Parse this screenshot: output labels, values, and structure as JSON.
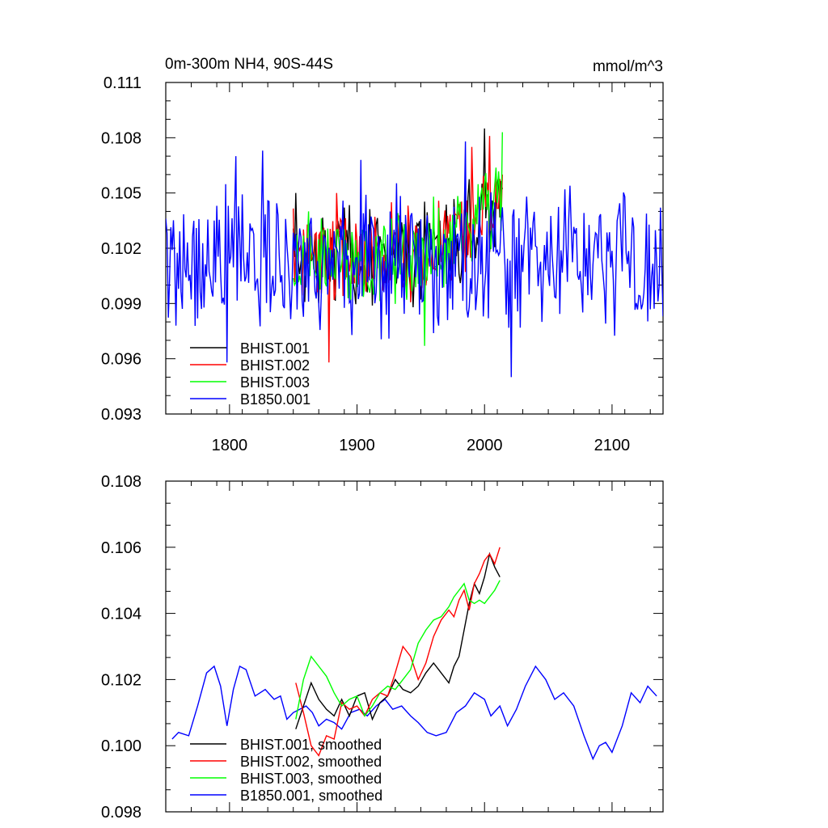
{
  "chart_data": [
    {
      "type": "line",
      "title": "0m-300m NH4, 90S-44S",
      "units": "mmol/m^3",
      "xlim": [
        1750,
        2140
      ],
      "ylim": [
        0.093,
        0.111
      ],
      "xticks": [
        1800,
        1900,
        2000,
        2100
      ],
      "yticks": [
        0.093,
        0.096,
        0.099,
        0.102,
        0.105,
        0.108,
        0.111
      ],
      "ytick_labels": [
        "0.093",
        "0.096",
        "0.099",
        "0.102",
        "0.105",
        "0.108",
        "0.111"
      ],
      "legend_position": "lower-left",
      "series": [
        {
          "name": "B1850.001",
          "color": "#0000ff",
          "x_start": 1750,
          "x_end": 2140,
          "mean": 0.1012,
          "amplitude": 0.0045,
          "keypoints": [
            [
              1758,
              0.0978
            ],
            [
              1788,
              0.1035
            ],
            [
              1798,
              0.0958
            ],
            [
              1805,
              0.107
            ],
            [
              1826,
              0.1073
            ],
            [
              1903,
              0.1068
            ],
            [
              1985,
              0.1078
            ],
            [
              2021,
              0.095
            ],
            [
              2033,
              0.1048
            ],
            [
              2063,
              0.1052
            ],
            [
              2110,
              0.1048
            ],
            [
              2139,
              0.101
            ]
          ]
        },
        {
          "name": "BHIST.001",
          "color": "#000000",
          "x_start": 1850,
          "x_end": 2014,
          "mean": 0.1015,
          "amplitude": 0.003,
          "keypoints": [
            [
              1852,
              0.105
            ],
            [
              1870,
              0.099
            ],
            [
              1930,
              0.1
            ],
            [
              1965,
              0.1035
            ],
            [
              2000,
              0.1085
            ],
            [
              2014,
              0.1052
            ]
          ]
        },
        {
          "name": "BHIST.002",
          "color": "#ff0000",
          "x_start": 1850,
          "x_end": 2014,
          "mean": 0.1015,
          "amplitude": 0.003,
          "keypoints": [
            [
              1853,
              0.1025
            ],
            [
              1878,
              0.0958
            ],
            [
              1884,
              0.105
            ],
            [
              1927,
              0.1045
            ],
            [
              1990,
              0.1075
            ],
            [
              2004,
              0.1081
            ],
            [
              2014,
              0.106
            ]
          ]
        },
        {
          "name": "BHIST.003",
          "color": "#00ff00",
          "x_start": 1850,
          "x_end": 2014,
          "mean": 0.1015,
          "amplitude": 0.003,
          "keypoints": [
            [
              1862,
              0.104
            ],
            [
              1953,
              0.0967
            ],
            [
              1960,
              0.1048
            ],
            [
              2000,
              0.1055
            ],
            [
              2014,
              0.1083
            ]
          ]
        }
      ]
    },
    {
      "type": "line",
      "xlim": [
        1750,
        2140
      ],
      "ylim": [
        0.098,
        0.108
      ],
      "xticks": [
        1800,
        1900,
        2000,
        2100
      ],
      "yticks": [
        0.098,
        0.1,
        0.102,
        0.104,
        0.106,
        0.108
      ],
      "ytick_labels": [
        "0.098",
        "0.100",
        "0.102",
        "0.104",
        "0.106",
        "0.108"
      ],
      "legend_position": "lower-left",
      "series": [
        {
          "name": "B1850.001, smoothed",
          "color": "#0000ff",
          "x": [
            1755,
            1760,
            1768,
            1775,
            1782,
            1788,
            1793,
            1798,
            1803,
            1808,
            1813,
            1820,
            1828,
            1835,
            1840,
            1845,
            1850,
            1855,
            1860,
            1865,
            1870,
            1876,
            1882,
            1888,
            1895,
            1902,
            1908,
            1915,
            1922,
            1928,
            1935,
            1942,
            1948,
            1955,
            1962,
            1970,
            1978,
            1985,
            1992,
            2000,
            2005,
            2012,
            2018,
            2025,
            2032,
            2040,
            2048,
            2055,
            2062,
            2070,
            2078,
            2085,
            2090,
            2095,
            2100,
            2108,
            2115,
            2122,
            2128,
            2135
          ],
          "y": [
            0.1002,
            0.1004,
            0.1003,
            0.1012,
            0.1022,
            0.1024,
            0.1018,
            0.1006,
            0.1017,
            0.1024,
            0.1023,
            0.1015,
            0.1017,
            0.1014,
            0.1015,
            0.1008,
            0.101,
            0.1011,
            0.1012,
            0.101,
            0.1006,
            0.1008,
            0.1007,
            0.1005,
            0.101,
            0.1011,
            0.1009,
            0.1012,
            0.1014,
            0.1011,
            0.1012,
            0.1009,
            0.1007,
            0.1004,
            0.1003,
            0.1004,
            0.101,
            0.1012,
            0.1016,
            0.1014,
            0.1009,
            0.1012,
            0.1006,
            0.1011,
            0.1018,
            0.1024,
            0.102,
            0.1014,
            0.1016,
            0.1012,
            0.1003,
            0.0996,
            0.1,
            0.1001,
            0.0998,
            0.1006,
            0.1016,
            0.1013,
            0.1018,
            0.1015
          ]
        },
        {
          "name": "BHIST.001, smoothed",
          "color": "#000000",
          "x": [
            1852,
            1858,
            1864,
            1870,
            1876,
            1882,
            1888,
            1894,
            1900,
            1906,
            1912,
            1918,
            1924,
            1930,
            1936,
            1942,
            1948,
            1954,
            1960,
            1966,
            1972,
            1976,
            1980,
            1984,
            1988,
            1992,
            1996,
            2000,
            2004,
            2008,
            2012
          ],
          "y": [
            0.1005,
            0.1012,
            0.1019,
            0.1014,
            0.1011,
            0.1009,
            0.1014,
            0.1009,
            0.1015,
            0.1016,
            0.1008,
            0.1013,
            0.1015,
            0.102,
            0.1017,
            0.1016,
            0.1018,
            0.1022,
            0.1025,
            0.1022,
            0.1019,
            0.1024,
            0.1027,
            0.1035,
            0.1043,
            0.1049,
            0.1046,
            0.1051,
            0.1058,
            0.1054,
            0.1051
          ]
        },
        {
          "name": "BHIST.002, smoothed",
          "color": "#ff0000",
          "x": [
            1852,
            1858,
            1864,
            1870,
            1876,
            1882,
            1888,
            1894,
            1900,
            1906,
            1912,
            1918,
            1924,
            1930,
            1936,
            1942,
            1948,
            1954,
            1960,
            1966,
            1972,
            1976,
            1980,
            1984,
            1988,
            1992,
            1996,
            2000,
            2004,
            2008,
            2012
          ],
          "y": [
            0.1019,
            0.101,
            0.1,
            0.0997,
            0.1003,
            0.1002,
            0.1013,
            0.1011,
            0.1012,
            0.1009,
            0.1014,
            0.1016,
            0.1015,
            0.1022,
            0.103,
            0.1027,
            0.102,
            0.1025,
            0.1033,
            0.1038,
            0.1041,
            0.1039,
            0.1044,
            0.1047,
            0.1041,
            0.1049,
            0.1052,
            0.1056,
            0.1058,
            0.1055,
            0.106
          ]
        },
        {
          "name": "BHIST.003, smoothed",
          "color": "#00ff00",
          "x": [
            1852,
            1858,
            1864,
            1870,
            1876,
            1882,
            1888,
            1894,
            1900,
            1906,
            1912,
            1918,
            1924,
            1930,
            1936,
            1942,
            1948,
            1954,
            1960,
            1966,
            1972,
            1976,
            1980,
            1984,
            1988,
            1992,
            1996,
            2000,
            2004,
            2008,
            2012
          ],
          "y": [
            0.1008,
            0.102,
            0.1027,
            0.1024,
            0.1021,
            0.1016,
            0.1012,
            0.1014,
            0.1015,
            0.1009,
            0.1012,
            0.1016,
            0.1018,
            0.1017,
            0.102,
            0.1023,
            0.1031,
            0.1035,
            0.1038,
            0.1039,
            0.1042,
            0.1045,
            0.1047,
            0.1049,
            0.1044,
            0.1043,
            0.1044,
            0.1043,
            0.1045,
            0.1047,
            0.105
          ]
        }
      ]
    }
  ]
}
